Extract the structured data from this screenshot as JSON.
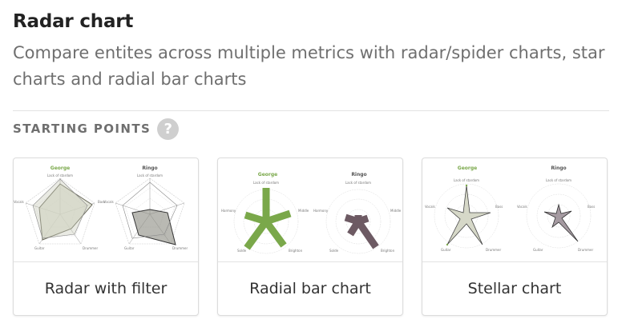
{
  "page": {
    "title": "Radar chart",
    "subtitle": "Compare entites across multiple metrics with radar/spider charts, star charts and radial bar charts"
  },
  "section": {
    "label": "STARTING POINTS",
    "help_icon": "question-mark-icon",
    "help_glyph": "?"
  },
  "colors": {
    "accent_green": "#7aa84a",
    "mauve": "#6d5a63",
    "help_bg": "#cfcfcf"
  },
  "cards": [
    {
      "label": "Radar with filter",
      "thumbnail": {
        "left_title": "George",
        "right_title": "Ringo",
        "axes": [
          "Lack of stardom",
          "Bass",
          "Drummer",
          "Guitar",
          "Vocals"
        ]
      }
    },
    {
      "label": "Radial bar chart",
      "thumbnail": {
        "left_title": "George",
        "right_title": "Ringo",
        "axes": [
          "Lack of stardom",
          "Middle",
          "Brighton",
          "Solde",
          "Harmony"
        ]
      }
    },
    {
      "label": "Stellar chart",
      "thumbnail": {
        "left_title": "George",
        "right_title": "Ringo",
        "axes": [
          "Lack of stardom",
          "Bass",
          "Drummer",
          "Guitar",
          "Vocals"
        ]
      }
    }
  ]
}
